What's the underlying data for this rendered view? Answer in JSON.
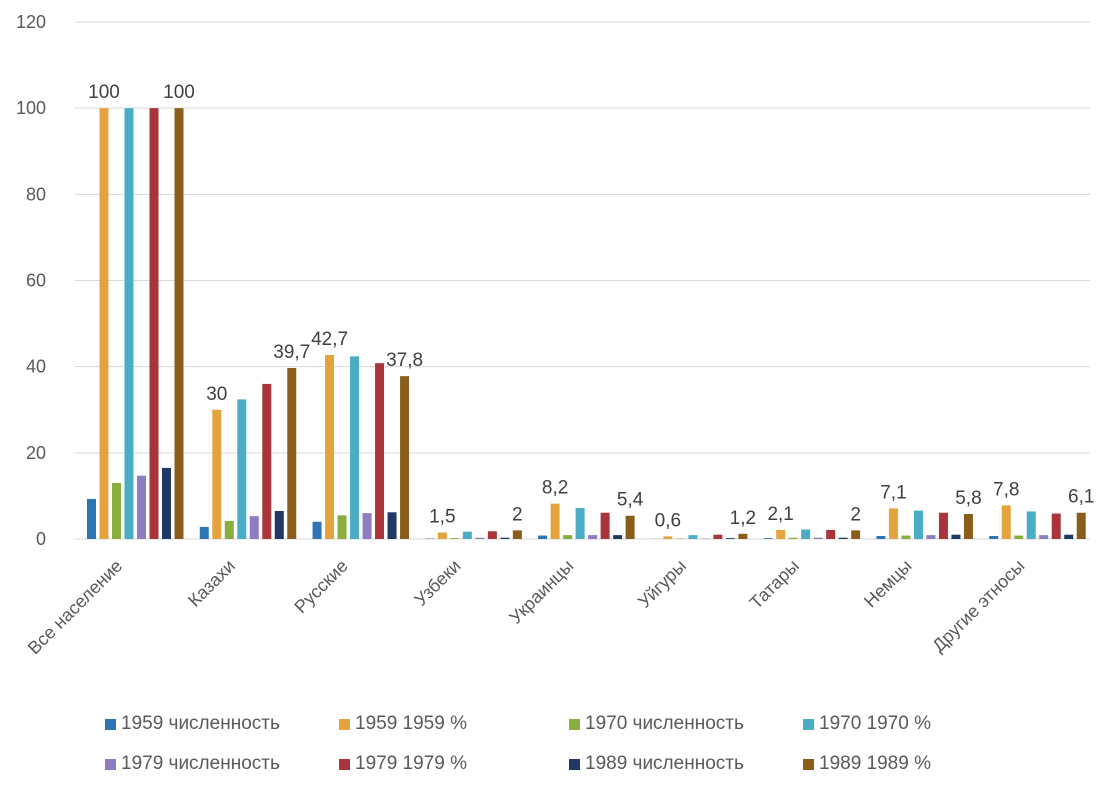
{
  "chart_data": {
    "type": "bar",
    "categories": [
      "Все население",
      "Казахи",
      "Русские",
      "Узбеки",
      "Украинцы",
      "Уйгуры",
      "Татары",
      "Немцы",
      "Другие этносы"
    ],
    "ylim": [
      0,
      120
    ],
    "yticks": [
      0,
      20,
      40,
      60,
      80,
      100,
      120
    ],
    "grid": true,
    "legend_position": "bottom",
    "series": [
      {
        "name": "1959 численность",
        "color": "#2E75B6",
        "values": [
          9.3,
          2.8,
          4.0,
          0.1,
          0.8,
          0.03,
          0.2,
          0.7,
          0.7
        ]
      },
      {
        "name": "1959 1959 %",
        "color": "#E5A33D",
        "values": [
          100,
          30,
          42.7,
          1.5,
          8.2,
          0.6,
          2.1,
          7.1,
          7.8
        ]
      },
      {
        "name": "1970 численность",
        "color": "#8AAD3F",
        "values": [
          13.0,
          4.2,
          5.5,
          0.2,
          0.9,
          0.1,
          0.3,
          0.8,
          0.8
        ]
      },
      {
        "name": "1970 1970 %",
        "color": "#4BACC6",
        "values": [
          100,
          32.4,
          42.4,
          1.7,
          7.2,
          0.9,
          2.2,
          6.6,
          6.4
        ]
      },
      {
        "name": "1979 численность",
        "color": "#8E7CC3",
        "values": [
          14.7,
          5.3,
          6.0,
          0.3,
          0.9,
          0.1,
          0.3,
          0.9,
          0.9
        ]
      },
      {
        "name": "1979 1979 %",
        "color": "#A9343A",
        "values": [
          100,
          36,
          40.8,
          1.8,
          6.1,
          1.0,
          2.1,
          6.1,
          5.9
        ]
      },
      {
        "name": "1989 численность",
        "color": "#1F3864",
        "values": [
          16.5,
          6.5,
          6.2,
          0.3,
          0.9,
          0.2,
          0.3,
          1.0,
          1.0
        ]
      },
      {
        "name": "1989 1989 %",
        "color": "#8A5D1B",
        "values": [
          100,
          39.7,
          37.8,
          2,
          5.4,
          1.2,
          2,
          5.8,
          6.1
        ]
      }
    ],
    "data_labels": [
      {
        "category": 0,
        "series": 1,
        "text": "100"
      },
      {
        "category": 0,
        "series": 7,
        "text": "100"
      },
      {
        "category": 1,
        "series": 1,
        "text": "30"
      },
      {
        "category": 1,
        "series": 7,
        "text": "39,7"
      },
      {
        "category": 2,
        "series": 1,
        "text": "42,7"
      },
      {
        "category": 2,
        "series": 7,
        "text": "37,8"
      },
      {
        "category": 3,
        "series": 1,
        "text": "1,5"
      },
      {
        "category": 3,
        "series": 7,
        "text": "2"
      },
      {
        "category": 4,
        "series": 1,
        "text": "8,2"
      },
      {
        "category": 4,
        "series": 7,
        "text": "5,4"
      },
      {
        "category": 5,
        "series": 1,
        "text": "0,6"
      },
      {
        "category": 5,
        "series": 7,
        "text": "1,2"
      },
      {
        "category": 6,
        "series": 1,
        "text": "2,1"
      },
      {
        "category": 6,
        "series": 7,
        "text": "2"
      },
      {
        "category": 7,
        "series": 1,
        "text": "7,1"
      },
      {
        "category": 7,
        "series": 7,
        "text": "5,8"
      },
      {
        "category": 8,
        "series": 1,
        "text": "7,8"
      },
      {
        "category": 8,
        "series": 7,
        "text": "6,1"
      }
    ]
  }
}
